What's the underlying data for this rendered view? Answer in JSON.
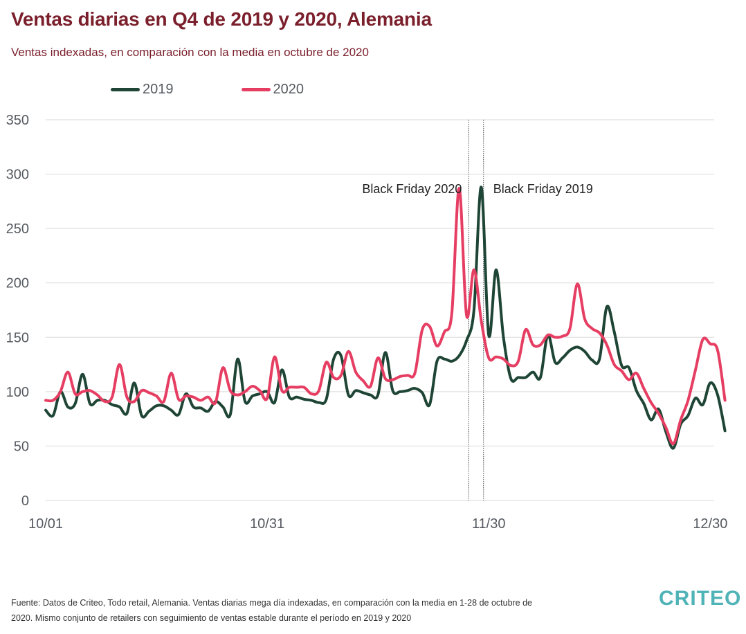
{
  "header": {
    "title": "Ventas diarias en Q4 de 2019 y 2020, Alemania",
    "subtitle": "Ventas indexadas, en comparación con la media en octubre de 2020"
  },
  "footer": {
    "source": "Fuente: Datos de Criteo, Todo retail, Alemania. Ventas diarias mega día indexadas, en comparación con la media en 1-28 de octubre de 2020. Mismo conjunto de retailers con seguimiento de ventas estable durante el período en 2019 y 2020",
    "logo": "CRITEO",
    "logo_color": "#4fb3b7"
  },
  "chart_data": {
    "type": "line",
    "x_tick_labels": [
      "10/01",
      "10/31",
      "11/30",
      "12/30"
    ],
    "x_tick_days": [
      0,
      30,
      60,
      90
    ],
    "ylim": [
      0,
      350
    ],
    "yticks": [
      0,
      50,
      100,
      150,
      200,
      250,
      300,
      350
    ],
    "grid": true,
    "legend_position": "top-left",
    "series": [
      {
        "name": "2019",
        "color": "#1e4535",
        "values": [
          83,
          78,
          100,
          86,
          89,
          116,
          89,
          92,
          92,
          88,
          86,
          80,
          108,
          78,
          82,
          87,
          87,
          83,
          79,
          98,
          86,
          85,
          82,
          91,
          86,
          79,
          130,
          91,
          96,
          98,
          100,
          90,
          120,
          95,
          95,
          93,
          92,
          90,
          93,
          130,
          133,
          97,
          101,
          99,
          97,
          97,
          136,
          101,
          100,
          101,
          103,
          99,
          88,
          128,
          130,
          128,
          133,
          147,
          175,
          288,
          152,
          212,
          150,
          112,
          113,
          113,
          118,
          113,
          152,
          127,
          131,
          138,
          141,
          137,
          129,
          130,
          178,
          155,
          124,
          122,
          101,
          89,
          74,
          84,
          63,
          48,
          70,
          78,
          94,
          88,
          108,
          97,
          64
        ]
      },
      {
        "name": "2020",
        "color": "#e63e63",
        "values": [
          92,
          92,
          100,
          118,
          98,
          100,
          101,
          97,
          91,
          95,
          125,
          95,
          91,
          101,
          99,
          96,
          91,
          117,
          93,
          96,
          95,
          92,
          95,
          90,
          122,
          101,
          97,
          100,
          105,
          101,
          94,
          132,
          101,
          104,
          104,
          104,
          98,
          101,
          127,
          113,
          115,
          137,
          118,
          110,
          105,
          131,
          112,
          111,
          114,
          115,
          117,
          157,
          160,
          142,
          155,
          172,
          287,
          170,
          212,
          165,
          131,
          132,
          130,
          124,
          128,
          157,
          143,
          143,
          152,
          150,
          151,
          158,
          199,
          167,
          158,
          154,
          143,
          125,
          119,
          111,
          117,
          103,
          90,
          80,
          67,
          52,
          74,
          92,
          120,
          148,
          144,
          138,
          92
        ]
      }
    ],
    "annotations": [
      {
        "label": "Black Friday 2020",
        "day": 57.3
      },
      {
        "label": "Black Friday 2019",
        "day": 59.3
      }
    ]
  }
}
